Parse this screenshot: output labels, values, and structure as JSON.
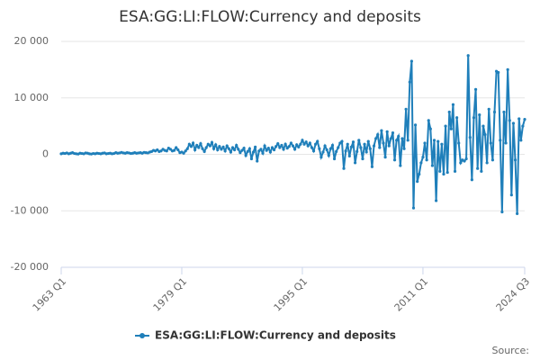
{
  "chart_data": {
    "type": "line",
    "title": "ESA:GG:LI:FLOW:Currency and deposits",
    "source": "Source:",
    "categories": [
      "1963 Q1",
      null,
      null,
      null,
      null,
      null,
      null,
      null,
      null,
      null,
      null,
      null,
      null,
      null,
      null,
      null,
      null,
      null,
      null,
      null,
      null,
      null,
      null,
      null,
      null,
      null,
      null,
      null,
      null,
      null,
      null,
      null,
      null,
      null,
      null,
      null,
      null,
      null,
      null,
      null,
      null,
      null,
      null,
      null,
      null,
      null,
      null,
      null,
      null,
      null,
      null,
      null,
      null,
      null,
      null,
      null,
      null,
      null,
      null,
      null,
      null,
      null,
      null,
      null,
      "1979 Q1",
      null,
      null,
      null,
      null,
      null,
      null,
      null,
      null,
      null,
      null,
      null,
      null,
      null,
      null,
      null,
      null,
      null,
      null,
      null,
      null,
      null,
      null,
      null,
      null,
      null,
      null,
      null,
      null,
      null,
      null,
      null,
      null,
      null,
      null,
      null,
      null,
      null,
      null,
      null,
      null,
      null,
      null,
      null,
      null,
      null,
      null,
      null,
      null,
      null,
      null,
      null,
      null,
      null,
      null,
      null,
      null,
      null,
      null,
      null,
      null,
      null,
      null,
      null,
      "1995 Q1",
      null,
      null,
      null,
      null,
      null,
      null,
      null,
      null,
      null,
      null,
      null,
      null,
      null,
      null,
      null,
      null,
      null,
      null,
      null,
      null,
      null,
      null,
      null,
      null,
      null,
      null,
      null,
      null,
      null,
      null,
      null,
      null,
      null,
      null,
      null,
      null,
      null,
      null,
      null,
      null,
      null,
      null,
      null,
      null,
      null,
      null,
      null,
      null,
      null,
      null,
      null,
      null,
      null,
      null,
      null,
      null,
      null,
      null,
      null,
      null,
      null,
      null,
      null,
      "2011 Q1",
      null,
      null,
      null,
      null,
      null,
      null,
      null,
      null,
      null,
      null,
      null,
      null,
      null,
      null,
      null,
      null,
      null,
      null,
      null,
      null,
      null,
      null,
      null,
      null,
      null,
      null,
      null,
      null,
      null,
      null,
      null,
      null,
      null,
      null,
      null,
      null,
      null,
      null,
      null,
      null,
      null,
      null,
      null,
      null,
      null,
      null,
      null,
      null,
      null,
      null,
      null,
      null,
      null,
      "2024 Q3"
    ],
    "series": [
      {
        "name": "ESA:GG:LI:FLOW:Currency and deposits",
        "color": "#1f7fba",
        "values": [
          100,
          200,
          150,
          250,
          100,
          200,
          300,
          150,
          100,
          50,
          200,
          150,
          100,
          250,
          200,
          100,
          50,
          150,
          100,
          200,
          150,
          100,
          200,
          250,
          100,
          150,
          200,
          100,
          150,
          300,
          200,
          250,
          350,
          250,
          200,
          300,
          250,
          150,
          200,
          300,
          200,
          250,
          300,
          200,
          350,
          300,
          250,
          400,
          500,
          700,
          600,
          800,
          500,
          600,
          900,
          700,
          600,
          1100,
          900,
          600,
          700,
          1200,
          800,
          300,
          400,
          200,
          600,
          1000,
          1800,
          1400,
          2000,
          800,
          1600,
          1200,
          1900,
          1000,
          500,
          1200,
          1800,
          1500,
          2100,
          1000,
          1700,
          800,
          1400,
          900,
          1300,
          600,
          1500,
          1000,
          400,
          1200,
          800,
          1600,
          900,
          300,
          700,
          1100,
          -200,
          500,
          1000,
          -800,
          400,
          1300,
          -1200,
          600,
          900,
          200,
          1500,
          700,
          1100,
          400,
          1200,
          800,
          1400,
          1900,
          1200,
          1600,
          900,
          1800,
          1100,
          1400,
          2000,
          1500,
          900,
          1700,
          1300,
          1800,
          2500,
          1800,
          2200,
          1500,
          2000,
          1200,
          600,
          1800,
          2300,
          1000,
          -500,
          400,
          1500,
          800,
          -200,
          1000,
          1600,
          -800,
          500,
          1200,
          2000,
          2300,
          -2500,
          600,
          1800,
          -300,
          1300,
          2200,
          -1500,
          500,
          2500,
          1200,
          -800,
          1800,
          400,
          2300,
          1000,
          -2200,
          1500,
          2800,
          3500,
          1200,
          4200,
          2000,
          -500,
          4000,
          1500,
          2800,
          3800,
          -1000,
          2500,
          3200,
          -2000,
          2800,
          1000,
          8000,
          2500,
          12800,
          16500,
          -9500,
          5200,
          -4800,
          -3500,
          -1500,
          -500,
          2000,
          -1000,
          6000,
          4500,
          -2000,
          2500,
          -8200,
          2300,
          -3000,
          1800,
          -3500,
          5000,
          -3200,
          7500,
          4500,
          8800,
          -3000,
          6500,
          2000,
          -1500,
          -1000,
          -1200,
          -800,
          17500,
          3000,
          -4500,
          6500,
          11500,
          -2500,
          7000,
          -3000,
          5000,
          3500,
          -1500,
          8000,
          2000,
          -1000,
          7500,
          14700,
          14500,
          2500,
          -10200,
          7500,
          2000,
          15000,
          6000,
          -7200,
          5500,
          -1000,
          -10500,
          6300,
          2500,
          5000,
          6200
        ]
      }
    ],
    "ylim": [
      -20000,
      20000
    ],
    "yticks": [
      {
        "value": -20000,
        "label": "-20 000"
      },
      {
        "value": -10000,
        "label": "-10 000"
      },
      {
        "value": 0,
        "label": "0"
      },
      {
        "value": 10000,
        "label": "10 000"
      },
      {
        "value": 20000,
        "label": "20 000"
      }
    ],
    "grid": true,
    "legend": "bottom"
  }
}
